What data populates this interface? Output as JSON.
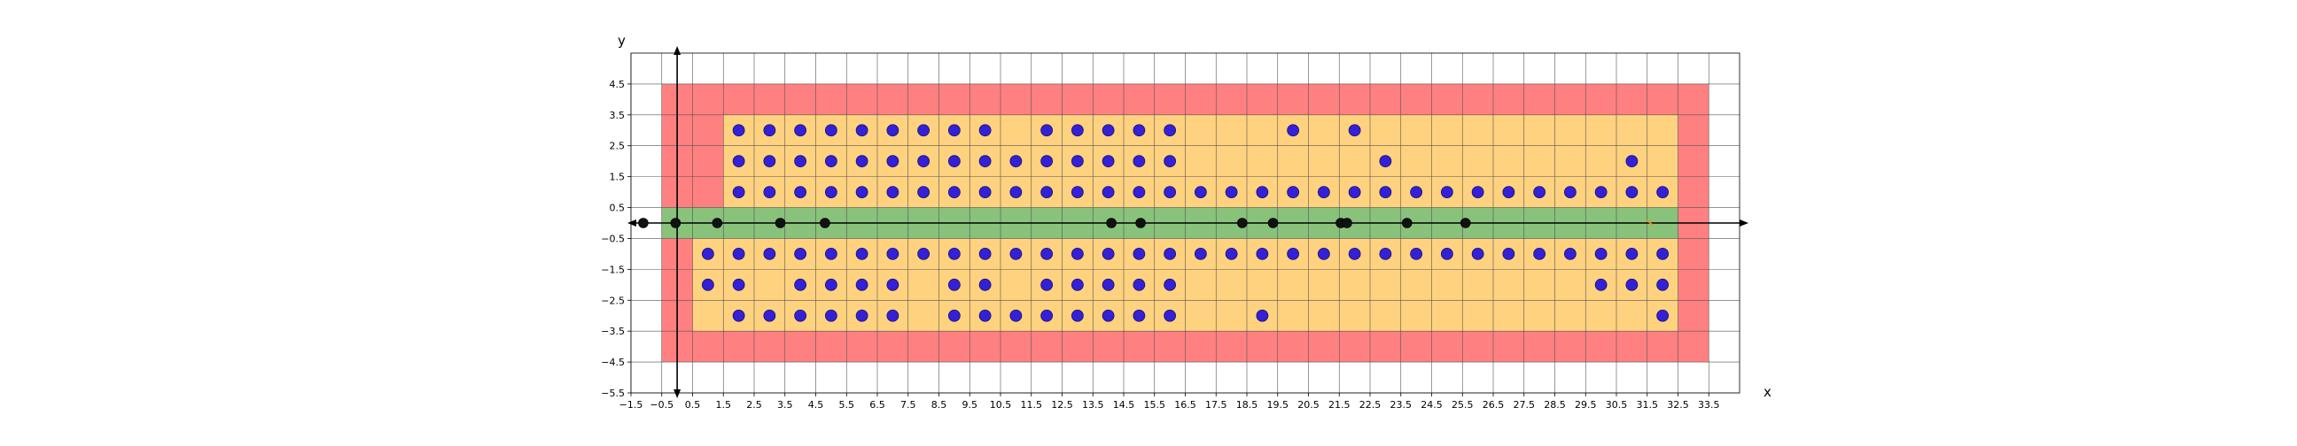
{
  "chart_data": {
    "type": "scatter",
    "title": "",
    "xlabel": "x",
    "ylabel": "y",
    "xlim": [
      -1.5,
      34.5
    ],
    "ylim": [
      -5.5,
      5.5
    ],
    "grid": true,
    "x_ticks": [
      -1.5,
      -0.5,
      0.5,
      1.5,
      2.5,
      3.5,
      4.5,
      5.5,
      6.5,
      7.5,
      8.5,
      9.5,
      10.5,
      11.5,
      12.5,
      13.5,
      14.5,
      15.5,
      16.5,
      17.5,
      18.5,
      19.5,
      20.5,
      21.5,
      22.5,
      23.5,
      24.5,
      25.5,
      26.5,
      27.5,
      28.5,
      29.5,
      30.5,
      31.5,
      32.5,
      33.5
    ],
    "y_ticks": [
      -5.5,
      -4.5,
      -3.5,
      -2.5,
      -1.5,
      -0.5,
      0.5,
      1.5,
      2.5,
      3.5,
      4.5
    ],
    "tick_labels_x": [
      "−1.5",
      "−0.5",
      "0.5",
      "1.5",
      "2.5",
      "3.5",
      "4.5",
      "5.5",
      "6.5",
      "7.5",
      "8.5",
      "9.5",
      "10.5",
      "11.5",
      "12.5",
      "13.5",
      "14.5",
      "15.5",
      "16.5",
      "17.5",
      "18.5",
      "19.5",
      "20.5",
      "21.5",
      "22.5",
      "23.5",
      "24.5",
      "25.5",
      "26.5",
      "27.5",
      "28.5",
      "29.5",
      "30.5",
      "31.5",
      "32.5",
      "33.5"
    ],
    "tick_labels_y": [
      "−5.5",
      "−4.5",
      "−3.5",
      "−2.5",
      "−1.5",
      "−0.5",
      "0.5",
      "1.5",
      "2.5",
      "3.5",
      "4.5"
    ],
    "regions": [
      {
        "color": "#ff8080",
        "x": [
          -0.5,
          33.5
        ],
        "y": [
          -4.5,
          4.5
        ]
      },
      {
        "color": "#ffd27f",
        "x": [
          0.5,
          32.5
        ],
        "y": [
          -3.5,
          -0.5
        ]
      },
      {
        "color": "#ffd27f",
        "x": [
          1.5,
          32.5
        ],
        "y": [
          0.5,
          3.5
        ]
      },
      {
        "color": "#88c27b",
        "x": [
          -0.5,
          32.5
        ],
        "y": [
          -0.5,
          0.5
        ]
      }
    ],
    "colors": {
      "point": "#3420d6",
      "point_edge": "#1a1270",
      "axis_point": "#111111",
      "grid": "#555555",
      "axis": "#000000",
      "marker": "#ff8c1a"
    },
    "points_upper": [
      {
        "y": 3,
        "x": [
          2,
          3,
          4,
          5,
          6,
          7,
          8,
          9,
          10,
          12,
          13,
          14,
          15,
          16,
          20,
          22
        ]
      },
      {
        "y": 2,
        "x": [
          2,
          3,
          4,
          5,
          6,
          7,
          8,
          9,
          10,
          11,
          12,
          13,
          14,
          15,
          16,
          23,
          31
        ]
      },
      {
        "y": 1,
        "x": [
          2,
          3,
          4,
          5,
          6,
          7,
          8,
          9,
          10,
          11,
          12,
          13,
          14,
          15,
          16,
          17,
          18,
          19,
          20,
          21,
          22,
          23,
          24,
          25,
          26,
          27,
          28,
          29,
          30,
          31,
          32
        ]
      }
    ],
    "points_lower": [
      {
        "y": -1,
        "x": [
          1,
          2,
          3,
          4,
          5,
          6,
          7,
          8,
          9,
          10,
          11,
          12,
          13,
          14,
          15,
          16,
          17,
          18,
          19,
          20,
          21,
          22,
          23,
          24,
          25,
          26,
          27,
          28,
          29,
          30,
          31,
          32
        ]
      },
      {
        "y": -2,
        "x": [
          1,
          2,
          4,
          5,
          6,
          7,
          9,
          10,
          12,
          13,
          14,
          15,
          16,
          30,
          31,
          32
        ]
      },
      {
        "y": -3,
        "x": [
          2,
          3,
          4,
          5,
          6,
          7,
          9,
          10,
          11,
          12,
          13,
          14,
          15,
          16,
          19,
          32
        ]
      }
    ],
    "axis_points_x": [
      -1.1,
      -0.05,
      1.3,
      3.35,
      4.8,
      14.1,
      15.05,
      18.35,
      19.35,
      21.55,
      21.75,
      23.7,
      25.6
    ],
    "orange_marker_x": 31.6
  }
}
